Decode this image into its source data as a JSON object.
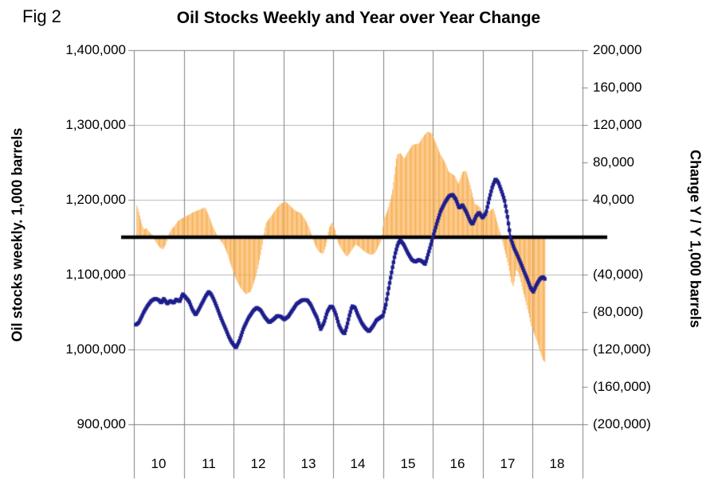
{
  "figure": {
    "label": "Fig 2"
  },
  "chart": {
    "title": "Oil Stocks Weekly and Year over Year Change",
    "left_axis": {
      "title": "Oil stocks weekly. 1,000 barrels",
      "tick_labels": [
        "1,400,000",
        "1,300,000",
        "1,200,000",
        "1,100,000",
        "1,000,000",
        "900,000"
      ],
      "min": 900000,
      "max": 1400000,
      "tick_step": 100000
    },
    "right_axis": {
      "title": "Change Y / Y 1,000 barrels",
      "tick_labels": [
        "200,000",
        "160,000",
        "120,000",
        "80,000",
        "40,000",
        "-",
        "(40,000)",
        "(80,000)",
        "(120,000)",
        "(160,000)",
        "(200,000)"
      ],
      "min": -200000,
      "max": 200000,
      "tick_step": 40000
    },
    "x_axis": {
      "tick_labels": [
        "10",
        "11",
        "12",
        "13",
        "14",
        "15",
        "16",
        "17",
        "18"
      ],
      "start_year": 2010,
      "end_year": 2019
    }
  },
  "chart_data": {
    "type": "combo",
    "note": "weekly series shown; values are anchor points read from the plot, linearly interpolated weekly",
    "grid": true,
    "zero_line_right_axis": 0,
    "series": [
      {
        "name": "Oil stocks weekly",
        "type": "line",
        "axis": "left",
        "color": "#1D1D8C",
        "x": [
          2010.04,
          2010.1,
          2010.15,
          2010.2,
          2010.27,
          2010.35,
          2010.43,
          2010.5,
          2010.55,
          2010.6,
          2010.67,
          2010.73,
          2010.8,
          2010.85,
          2010.92,
          2010.98,
          2011.05,
          2011.11,
          2011.17,
          2011.24,
          2011.3,
          2011.37,
          2011.44,
          2011.5,
          2011.55,
          2011.61,
          2011.67,
          2011.72,
          2011.78,
          2011.84,
          2011.9,
          2011.96,
          2012.05,
          2012.12,
          2012.2,
          2012.3,
          2012.4,
          2012.47,
          2012.55,
          2012.63,
          2012.72,
          2012.8,
          2012.88,
          2012.95,
          2013.02,
          2013.1,
          2013.18,
          2013.27,
          2013.38,
          2013.48,
          2013.55,
          2013.62,
          2013.68,
          2013.75,
          2013.82,
          2013.88,
          2013.95,
          2014.0,
          2014.06,
          2014.12,
          2014.18,
          2014.23,
          2014.28,
          2014.33,
          2014.38,
          2014.44,
          2014.5,
          2014.57,
          2014.64,
          2014.72,
          2014.8,
          2014.87,
          2014.93,
          2015.0,
          2015.06,
          2015.12,
          2015.18,
          2015.24,
          2015.3,
          2015.35,
          2015.42,
          2015.5,
          2015.58,
          2015.65,
          2015.72,
          2015.78,
          2015.85,
          2015.92,
          2016.0,
          2016.08,
          2016.16,
          2016.25,
          2016.33,
          2016.4,
          2016.47,
          2016.53,
          2016.6,
          2016.68,
          2016.75,
          2016.8,
          2016.87,
          2016.93,
          2017.0,
          2017.07,
          2017.13,
          2017.2,
          2017.26,
          2017.32,
          2017.38,
          2017.44,
          2017.5,
          2017.56,
          2017.63,
          2017.7,
          2017.77,
          2017.83,
          2017.9,
          2017.96,
          2018.02,
          2018.08,
          2018.15,
          2018.21,
          2018.27
        ],
        "values": [
          1033000,
          1036000,
          1043000,
          1050000,
          1058000,
          1065000,
          1068000,
          1066000,
          1062000,
          1068000,
          1061000,
          1065000,
          1062000,
          1067000,
          1064000,
          1074000,
          1069000,
          1064000,
          1054000,
          1046000,
          1053000,
          1062000,
          1071000,
          1077000,
          1074000,
          1066000,
          1056000,
          1047000,
          1037000,
          1028000,
          1018000,
          1010000,
          1002000,
          1012000,
          1028000,
          1042000,
          1052000,
          1056000,
          1052000,
          1043000,
          1036000,
          1040000,
          1045000,
          1044000,
          1040000,
          1044000,
          1052000,
          1061000,
          1066000,
          1066000,
          1060000,
          1050000,
          1042000,
          1027000,
          1036000,
          1050000,
          1058000,
          1056000,
          1046000,
          1032000,
          1024000,
          1021000,
          1032000,
          1046000,
          1058000,
          1056000,
          1046000,
          1036000,
          1029000,
          1024000,
          1031000,
          1039000,
          1042000,
          1045000,
          1060000,
          1083000,
          1105000,
          1126000,
          1141000,
          1146000,
          1140000,
          1129000,
          1120000,
          1117000,
          1120000,
          1118000,
          1114000,
          1130000,
          1149000,
          1168000,
          1185000,
          1197000,
          1205000,
          1207000,
          1200000,
          1189000,
          1193000,
          1183000,
          1172000,
          1167000,
          1178000,
          1183000,
          1176000,
          1182000,
          1200000,
          1218000,
          1228000,
          1223000,
          1212000,
          1200000,
          1178000,
          1150000,
          1136000,
          1126000,
          1115000,
          1105000,
          1094000,
          1083000,
          1077000,
          1086000,
          1094000,
          1097000,
          1093000
        ]
      },
      {
        "name": "Change Y / Y",
        "type": "bar",
        "axis": "right",
        "color": "#F9AD4D",
        "x": [
          2010.06,
          2010.1,
          2010.16,
          2010.2,
          2010.25,
          2010.3,
          2010.38,
          2010.45,
          2010.52,
          2010.58,
          2010.64,
          2010.7,
          2010.76,
          2010.82,
          2010.88,
          2010.95,
          2011.0,
          2011.1,
          2011.2,
          2011.3,
          2011.43,
          2011.5,
          2011.58,
          2011.65,
          2011.72,
          2011.8,
          2011.88,
          2011.95,
          2012.05,
          2012.15,
          2012.25,
          2012.35,
          2012.45,
          2012.52,
          2012.58,
          2012.65,
          2012.75,
          2012.85,
          2012.95,
          2013.05,
          2013.15,
          2013.25,
          2013.35,
          2013.45,
          2013.52,
          2013.58,
          2013.65,
          2013.72,
          2013.8,
          2013.86,
          2013.92,
          2013.98,
          2014.04,
          2014.1,
          2014.18,
          2014.28,
          2014.36,
          2014.45,
          2014.52,
          2014.6,
          2014.68,
          2014.76,
          2014.84,
          2014.92,
          2014.97,
          2015.02,
          2015.08,
          2015.13,
          2015.19,
          2015.24,
          2015.28,
          2015.35,
          2015.43,
          2015.51,
          2015.6,
          2015.72,
          2015.83,
          2015.9,
          2015.98,
          2016.07,
          2016.15,
          2016.24,
          2016.32,
          2016.44,
          2016.52,
          2016.6,
          2016.67,
          2016.76,
          2016.84,
          2016.95,
          2017.05,
          2017.16,
          2017.22,
          2017.3,
          2017.38,
          2017.45,
          2017.52,
          2017.58,
          2017.62,
          2017.68,
          2017.74,
          2017.8,
          2017.86,
          2017.92,
          2017.98,
          2018.05,
          2018.1,
          2018.16,
          2018.22,
          2018.27
        ],
        "values": [
          34000,
          27000,
          14000,
          8000,
          10000,
          6000,
          2000,
          -6000,
          -11000,
          -13000,
          -8000,
          3000,
          9000,
          12000,
          17000,
          20000,
          21000,
          24000,
          27000,
          29000,
          32000,
          24000,
          12000,
          4000,
          -2000,
          -8000,
          -18000,
          -30000,
          -45000,
          -55000,
          -61000,
          -58000,
          -42000,
          -25000,
          -8000,
          15000,
          22000,
          30000,
          36000,
          38000,
          33000,
          28000,
          26000,
          18000,
          10000,
          0,
          -10000,
          -16000,
          -18000,
          -8000,
          10000,
          16000,
          8000,
          -6000,
          -14000,
          -21000,
          -15000,
          -8000,
          -10000,
          -14000,
          -17000,
          -19000,
          -17000,
          -9000,
          -3000,
          19000,
          27000,
          35000,
          49000,
          70000,
          88000,
          90000,
          84000,
          92000,
          99000,
          100000,
          109000,
          113000,
          111000,
          100000,
          89000,
          81000,
          70000,
          66000,
          57000,
          70000,
          71000,
          54000,
          36000,
          32000,
          20000,
          29000,
          31000,
          15000,
          0,
          -15000,
          -30000,
          -48000,
          -53000,
          -34000,
          -40000,
          -55000,
          -67000,
          -80000,
          -95000,
          -105000,
          -112000,
          -123000,
          -132000,
          -134000
        ]
      }
    ]
  },
  "colors": {
    "bar": "#F9AD4D",
    "line": "#1D1D8C",
    "grid": "#b7b7b7",
    "axis": "#808080",
    "zero_line": "#000000",
    "background": "#ffffff"
  }
}
